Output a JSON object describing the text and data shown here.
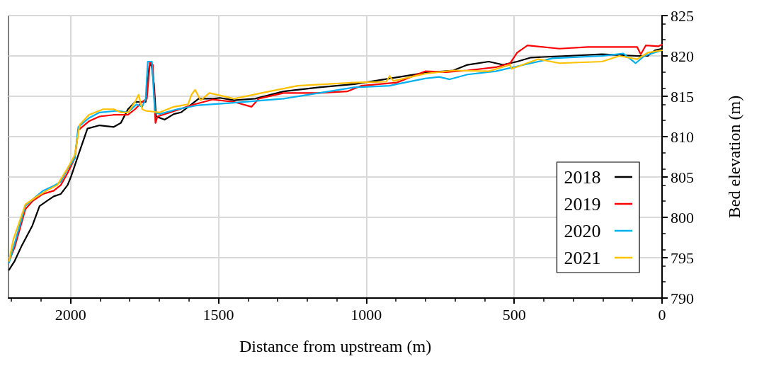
{
  "chart_data": {
    "type": "line",
    "xlabel": "Distance from upstream (m)",
    "ylabel": "Bed elevation (m)",
    "xlim": [
      2210,
      0
    ],
    "xticks": [
      2000,
      1500,
      1000,
      500,
      0
    ],
    "ylim": [
      790,
      825
    ],
    "yticks": [
      790,
      795,
      800,
      805,
      810,
      815,
      820,
      825
    ],
    "grid": true,
    "legend": "bottom right",
    "marker": "none",
    "line_style": "solid",
    "series": [
      {
        "name": "2018",
        "color": "#000000",
        "x": [
          2208,
          2189,
          2165,
          2129,
          2105,
          2081,
          2057,
          2033,
          2010,
          1998,
          1974,
          1943,
          1902,
          1854,
          1830,
          1806,
          1782,
          1746,
          1734,
          1727,
          1718,
          1711,
          1682,
          1651,
          1627,
          1591,
          1567,
          1519,
          1495,
          1447,
          1376,
          1280,
          1160,
          1041,
          921,
          801,
          706,
          658,
          586,
          538,
          490,
          443,
          323,
          203,
          84,
          48,
          24,
          0
        ],
        "values": [
          793.5,
          794.6,
          796.5,
          799,
          801.4,
          802,
          802.6,
          802.9,
          804,
          805.1,
          807.7,
          811,
          811.4,
          811.2,
          811.7,
          813.4,
          814.3,
          814.3,
          818.7,
          819.1,
          816.5,
          812.5,
          812.1,
          812.8,
          813,
          814,
          814.7,
          814.7,
          814.8,
          814.5,
          814.7,
          815.6,
          816.1,
          816.5,
          817.2,
          817.9,
          818.2,
          818.9,
          819.3,
          818.9,
          819.3,
          819.8,
          820,
          820.2,
          820,
          820,
          820.7,
          820.9
        ]
      },
      {
        "name": "2019",
        "color": "#ff0000",
        "x": [
          2208,
          2189,
          2153,
          2129,
          2093,
          2057,
          2033,
          2010,
          1986,
          1974,
          1938,
          1902,
          1854,
          1806,
          1782,
          1758,
          1742,
          1732,
          1722,
          1713,
          1706,
          1663,
          1591,
          1519,
          1447,
          1388,
          1364,
          1280,
          1160,
          1065,
          1017,
          897,
          801,
          730,
          658,
          562,
          514,
          490,
          455,
          347,
          251,
          155,
          84,
          72,
          55,
          12,
          0
        ],
        "values": [
          794.6,
          796.3,
          801,
          802,
          802.9,
          803.3,
          804,
          805.5,
          807.3,
          810.8,
          811.9,
          812.5,
          812.7,
          812.7,
          813.4,
          814.3,
          814.7,
          819.2,
          818.9,
          811.7,
          812.5,
          813,
          813.9,
          814.6,
          814.3,
          813.7,
          814.7,
          815.4,
          815.4,
          815.6,
          816.3,
          816.7,
          818.1,
          818,
          818.2,
          818.6,
          819.1,
          820.4,
          821.3,
          820.9,
          821.1,
          821.1,
          821.1,
          820.2,
          821.3,
          821.2,
          821.4
        ]
      },
      {
        "name": "2020",
        "color": "#00b0f0",
        "x": [
          2208,
          2189,
          2153,
          2129,
          2093,
          2057,
          2033,
          2010,
          1986,
          1974,
          1938,
          1902,
          1842,
          1806,
          1777,
          1758,
          1746,
          1739,
          1725,
          1715,
          1699,
          1639,
          1567,
          1447,
          1280,
          1160,
          1041,
          921,
          897,
          801,
          754,
          718,
          658,
          562,
          467,
          371,
          203,
          131,
          89,
          60,
          0
        ],
        "values": [
          794.4,
          796.8,
          801.4,
          802.2,
          803.3,
          803.9,
          804.4,
          806,
          807.3,
          811.2,
          812.3,
          813,
          813.2,
          813,
          814,
          813.7,
          814.7,
          819.3,
          819.3,
          813,
          812.8,
          813.4,
          813.9,
          814.2,
          814.7,
          815.4,
          816.1,
          816.3,
          816.5,
          817.2,
          817.4,
          817.1,
          817.7,
          818.1,
          818.9,
          819.7,
          820,
          820.3,
          819.1,
          820,
          820.7
        ]
      },
      {
        "name": "2021",
        "color": "#ffc000",
        "x": [
          2208,
          2194,
          2153,
          2117,
          2081,
          2045,
          2010,
          1986,
          1969,
          1938,
          1890,
          1854,
          1830,
          1806,
          1782,
          1770,
          1758,
          1746,
          1699,
          1651,
          1603,
          1591,
          1579,
          1560,
          1531,
          1447,
          1328,
          1232,
          1041,
          933,
          921,
          909,
          801,
          706,
          586,
          514,
          509,
          419,
          347,
          203,
          144,
          84,
          48,
          0
        ],
        "values": [
          794.6,
          797.2,
          801.6,
          802.5,
          803.3,
          804,
          806.1,
          807.7,
          811.5,
          812.7,
          813.4,
          813.4,
          813,
          813,
          814.3,
          815.2,
          813.4,
          813.2,
          813,
          813.7,
          814,
          815.2,
          815.8,
          814.5,
          815.4,
          814.7,
          815.6,
          816.3,
          816.7,
          816.8,
          817.5,
          816.9,
          817.8,
          818.2,
          818.1,
          818.9,
          818.4,
          819.6,
          819.1,
          819.3,
          820,
          819.6,
          820.4,
          820.7
        ]
      }
    ]
  }
}
